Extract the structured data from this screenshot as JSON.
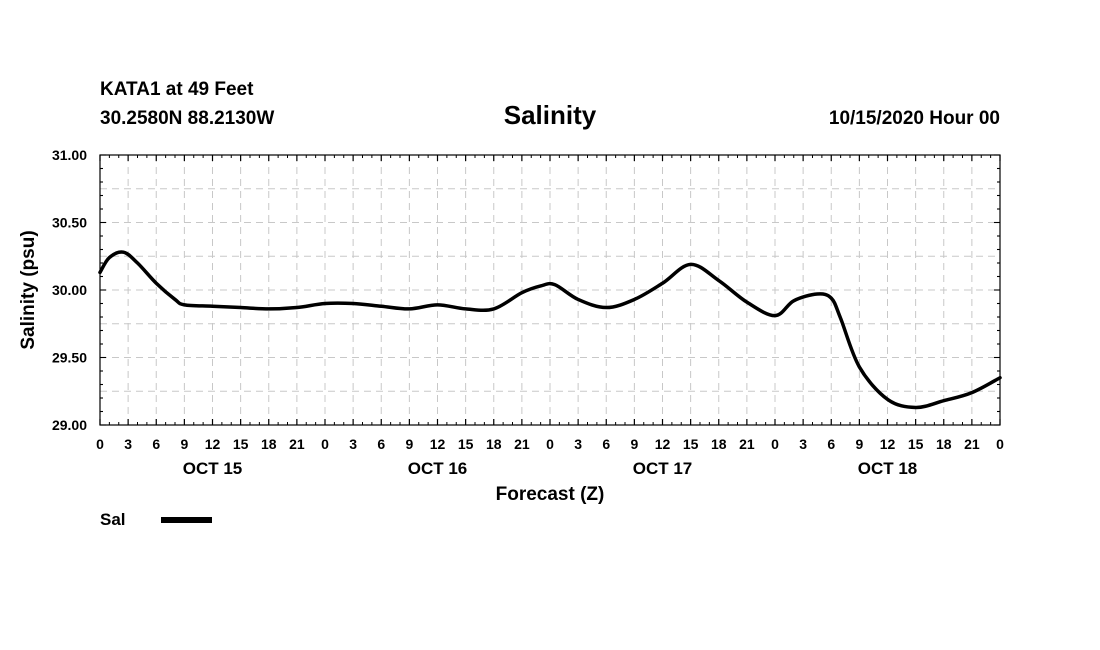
{
  "header": {
    "station": "KATA1 at 49 Feet",
    "coords": "30.2580N 88.2130W",
    "datetime": "10/15/2020 Hour 00"
  },
  "legend": {
    "label": "Sal"
  },
  "colors": {
    "line": "#000000",
    "grid": "#c8c8c8",
    "axis": "#000000"
  },
  "chart_data": {
    "type": "line",
    "title": "Salinity",
    "xlabel": "Forecast (Z)",
    "ylabel": "Salinity (psu)",
    "xlim": [
      0,
      96
    ],
    "ylim": [
      29.0,
      31.0
    ],
    "grid": true,
    "legend_position": "bottom-left",
    "x_tick_labels": [
      "0",
      "3",
      "6",
      "9",
      "12",
      "15",
      "18",
      "21",
      "0",
      "3",
      "6",
      "9",
      "12",
      "15",
      "18",
      "21",
      "0",
      "3",
      "6",
      "9",
      "12",
      "15",
      "18",
      "21",
      "0",
      "3",
      "6",
      "9",
      "12",
      "15",
      "18",
      "21",
      "0"
    ],
    "day_labels": [
      {
        "hour": 12,
        "label": "OCT 15"
      },
      {
        "hour": 36,
        "label": "OCT 16"
      },
      {
        "hour": 60,
        "label": "OCT 17"
      },
      {
        "hour": 84,
        "label": "OCT 18"
      }
    ],
    "y_ticks": [
      {
        "value": 29.0,
        "label": "29.00"
      },
      {
        "value": 29.5,
        "label": "29.50"
      },
      {
        "value": 30.0,
        "label": "30.00"
      },
      {
        "value": 30.5,
        "label": "30.50"
      },
      {
        "value": 31.0,
        "label": "31.00"
      }
    ],
    "series": [
      {
        "name": "Sal",
        "x": [
          0,
          1,
          2.5,
          4,
          6,
          8,
          9,
          12,
          15,
          18,
          21,
          24,
          27,
          30,
          33,
          36,
          39,
          42,
          45,
          47,
          48.5,
          51,
          54,
          57,
          60,
          63,
          66,
          69,
          72,
          74,
          76.5,
          78,
          79,
          81,
          84,
          87,
          90,
          93,
          96
        ],
        "values": [
          30.13,
          30.24,
          30.28,
          30.2,
          30.05,
          29.93,
          29.89,
          29.88,
          29.87,
          29.86,
          29.87,
          29.9,
          29.9,
          29.88,
          29.86,
          29.89,
          29.86,
          29.86,
          29.98,
          30.03,
          30.04,
          29.93,
          29.87,
          29.93,
          30.05,
          30.19,
          30.07,
          29.91,
          29.81,
          29.92,
          29.97,
          29.94,
          29.79,
          29.43,
          29.19,
          29.13,
          29.18,
          29.24,
          29.35
        ]
      }
    ]
  }
}
